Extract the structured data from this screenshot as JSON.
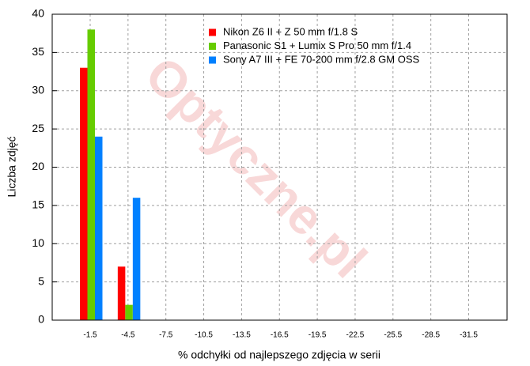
{
  "chart_data": {
    "type": "bar",
    "watermark": "Optyczne.pl",
    "x_label": "% odchyłki od najlepszego zdjęcia w serii",
    "y_label": "Liczba zdjęć",
    "categories": [
      "-1.5",
      "-4.5",
      "-7.5",
      "-10.5",
      "-13.5",
      "-16.5",
      "-19.5",
      "-22.5",
      "-25.5",
      "-28.5",
      "-31.5"
    ],
    "series": [
      {
        "name": "Nikon Z6 II + Z 50 mm f/1.8 S",
        "color": "#ff0000",
        "values": [
          33,
          7,
          0,
          0,
          0,
          0,
          0,
          0,
          0,
          0,
          0
        ]
      },
      {
        "name": "Panasonic S1 + Lumix S Pro 50 mm f/1.4",
        "color": "#66cc00",
        "values": [
          38,
          2,
          0,
          0,
          0,
          0,
          0,
          0,
          0,
          0,
          0
        ]
      },
      {
        "name": "Sony A7 III + FE 70-200 mm f/2.8 GM OSS",
        "color": "#0080ff",
        "values": [
          24,
          16,
          0,
          0,
          0,
          0,
          0,
          0,
          0,
          0,
          0
        ]
      }
    ],
    "ylim": [
      0,
      40
    ],
    "yticks": [
      0,
      5,
      10,
      15,
      20,
      25,
      30,
      35,
      40
    ],
    "grid": true,
    "legend": "top"
  }
}
